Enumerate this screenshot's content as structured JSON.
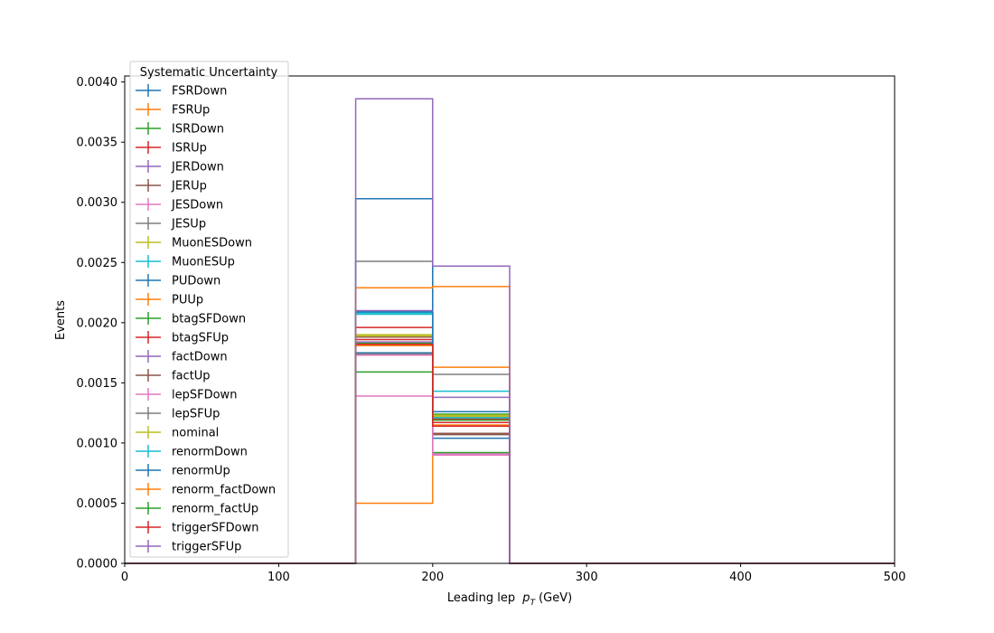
{
  "chart_data": {
    "type": "histogram",
    "title": "",
    "xlabel": "Leading lep",
    "xlabel_sub": "T",
    "xlabel_math": "p",
    "xlabel_unit": "(GeV)",
    "ylabel": "Events",
    "xlim": [
      0,
      500
    ],
    "ylim": [
      0,
      0.00405
    ],
    "xticks": [
      "0",
      "100",
      "200",
      "300",
      "400",
      "500"
    ],
    "yticks": [
      "0.0000",
      "0.0005",
      "0.0010",
      "0.0015",
      "0.0020",
      "0.0025",
      "0.0030",
      "0.0035",
      "0.0040"
    ],
    "bin_edges": [
      0,
      50,
      100,
      150,
      200,
      250,
      300,
      350,
      400,
      450,
      500
    ],
    "legend_title": "Systematic Uncertainty",
    "legend_loc": "upper-left",
    "grid": false,
    "series": [
      {
        "name": "FSRDown",
        "color": "#1f77b4",
        "values": [
          0,
          0,
          0,
          0.00175,
          0.00122,
          0,
          0,
          0,
          0,
          0
        ]
      },
      {
        "name": "FSRUp",
        "color": "#ff7f0e",
        "values": [
          0,
          0,
          0,
          0.00181,
          0.00115,
          0,
          0,
          0,
          0,
          0
        ]
      },
      {
        "name": "ISRDown",
        "color": "#2ca02c",
        "values": [
          0,
          0,
          0,
          0.00183,
          0.00124,
          0,
          0,
          0,
          0,
          0
        ]
      },
      {
        "name": "ISRUp",
        "color": "#d62728",
        "values": [
          0,
          0,
          0,
          0.00186,
          0.0012,
          0,
          0,
          0,
          0,
          0
        ]
      },
      {
        "name": "JERDown",
        "color": "#9467bd",
        "values": [
          0,
          0,
          0,
          0.00184,
          0.00121,
          0,
          0,
          0,
          0,
          0
        ]
      },
      {
        "name": "JERUp",
        "color": "#8c564b",
        "values": [
          0,
          0,
          0,
          0.00188,
          0.00107,
          0,
          0,
          0,
          0,
          0
        ]
      },
      {
        "name": "JESDown",
        "color": "#e377c2",
        "values": [
          0,
          0,
          0,
          0.00139,
          0.00091,
          0,
          0,
          0,
          0,
          0
        ]
      },
      {
        "name": "JESUp",
        "color": "#7f7f7f",
        "values": [
          0,
          0,
          0,
          0.00251,
          0.00157,
          0,
          0,
          0,
          0,
          0
        ]
      },
      {
        "name": "MuonESDown",
        "color": "#bcbd22",
        "values": [
          0,
          0,
          0,
          0.00189,
          0.00122,
          0,
          0,
          0,
          0,
          0
        ]
      },
      {
        "name": "MuonESUp",
        "color": "#17becf",
        "values": [
          0,
          0,
          0,
          0.00208,
          0.00143,
          0,
          0,
          0,
          0,
          0
        ]
      },
      {
        "name": "PUDown",
        "color": "#1f77b4",
        "values": [
          0,
          0,
          0,
          0.00303,
          0.00104,
          0,
          0,
          0,
          0,
          0
        ]
      },
      {
        "name": "PUUp",
        "color": "#ff7f0e",
        "values": [
          0,
          0,
          0,
          0.0005,
          0.00163,
          0,
          0,
          0,
          0,
          0
        ]
      },
      {
        "name": "btagSFDown",
        "color": "#2ca02c",
        "values": [
          0,
          0,
          0,
          0.00159,
          0.00092,
          0,
          0,
          0,
          0,
          0
        ]
      },
      {
        "name": "btagSFUp",
        "color": "#d62728",
        "values": [
          0,
          0,
          0,
          0.00196,
          0.00117,
          0,
          0,
          0,
          0,
          0
        ]
      },
      {
        "name": "factDown",
        "color": "#9467bd",
        "values": [
          0,
          0,
          0,
          0.0021,
          0.00138,
          0,
          0,
          0,
          0,
          0
        ]
      },
      {
        "name": "factUp",
        "color": "#8c564b",
        "values": [
          0,
          0,
          0,
          0.00173,
          0.00108,
          0,
          0,
          0,
          0,
          0
        ]
      },
      {
        "name": "lepSFDown",
        "color": "#e377c2",
        "values": [
          0,
          0,
          0,
          0.00173,
          0.0009,
          0,
          0,
          0,
          0,
          0
        ]
      },
      {
        "name": "lepSFUp",
        "color": "#7f7f7f",
        "values": [
          0,
          0,
          0,
          0.00174,
          0.00121,
          0,
          0,
          0,
          0,
          0
        ]
      },
      {
        "name": "nominal",
        "color": "#bcbd22",
        "values": [
          0,
          0,
          0,
          0.0019,
          0.00123,
          0,
          0,
          0,
          0,
          0
        ]
      },
      {
        "name": "renormDown",
        "color": "#17becf",
        "values": [
          0,
          0,
          0,
          0.00207,
          0.00121,
          0,
          0,
          0,
          0,
          0
        ]
      },
      {
        "name": "renormUp",
        "color": "#1f77b4",
        "values": [
          0,
          0,
          0,
          0.00209,
          0.00126,
          0,
          0,
          0,
          0,
          0
        ]
      },
      {
        "name": "renorm_factDown",
        "color": "#ff7f0e",
        "values": [
          0,
          0,
          0,
          0.00229,
          0.0023,
          0,
          0,
          0,
          0,
          0
        ]
      },
      {
        "name": "renorm_factUp",
        "color": "#2ca02c",
        "values": [
          0,
          0,
          0,
          0.00182,
          0.00119,
          0,
          0,
          0,
          0,
          0
        ]
      },
      {
        "name": "triggerSFDown",
        "color": "#d62728",
        "values": [
          0,
          0,
          0,
          0.00182,
          0.00114,
          0,
          0,
          0,
          0,
          0
        ]
      },
      {
        "name": "triggerSFUp",
        "color": "#9467bd",
        "values": [
          0,
          0,
          0,
          0.00386,
          0.00247,
          0,
          0,
          0,
          0,
          0
        ]
      }
    ]
  }
}
